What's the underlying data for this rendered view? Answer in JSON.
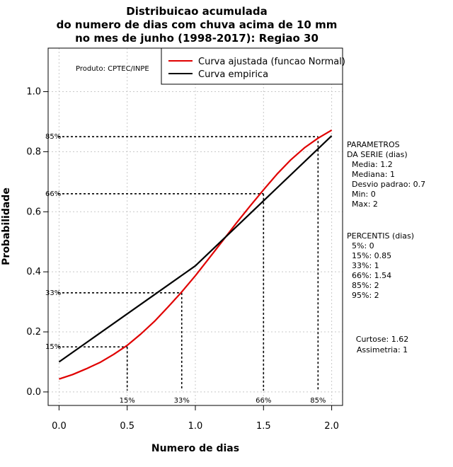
{
  "chart_data": {
    "type": "line",
    "title_lines": [
      "Distribuicao acumulada",
      "do numero de dias com chuva acima de 10 mm",
      "no mes de junho (1998-2017): Regiao 30"
    ],
    "xlabel": "Numero de dias",
    "ylabel": "Probabilidade",
    "xlim": [
      -0.08,
      2.08
    ],
    "ylim": [
      -0.045,
      1.145
    ],
    "x_ticks": [
      0.0,
      0.5,
      1.0,
      1.5,
      2.0
    ],
    "x_tick_labels": [
      "0.0",
      "0.5",
      "1.0",
      "1.5",
      "2.0"
    ],
    "y_ticks": [
      0.0,
      0.2,
      0.4,
      0.6,
      0.8,
      1.0
    ],
    "y_tick_labels": [
      "0.0",
      "0.2",
      "0.4",
      "0.6",
      "0.8",
      "1.0"
    ],
    "grid": true,
    "credit": "Produto: CPTEC/INPE",
    "legend": [
      {
        "label": "Curva ajustada (funcao Normal)",
        "color": "#e00000"
      },
      {
        "label": "Curva empirica",
        "color": "#000000"
      }
    ],
    "series": [
      {
        "name": "Curva ajustada (funcao Normal)",
        "color": "#e00000",
        "x": [
          0.0,
          0.1,
          0.2,
          0.3,
          0.4,
          0.5,
          0.6,
          0.7,
          0.8,
          0.9,
          1.0,
          1.1,
          1.2,
          1.3,
          1.4,
          1.5,
          1.6,
          1.7,
          1.8,
          1.9,
          2.0
        ],
        "y": [
          0.043,
          0.058,
          0.077,
          0.098,
          0.125,
          0.155,
          0.193,
          0.235,
          0.283,
          0.333,
          0.387,
          0.445,
          0.503,
          0.562,
          0.618,
          0.673,
          0.726,
          0.773,
          0.813,
          0.845,
          0.872
        ]
      },
      {
        "name": "Curva empirica",
        "color": "#000000",
        "x": [
          0.0,
          1.0,
          2.0
        ],
        "y": [
          0.1,
          0.42,
          0.853
        ]
      }
    ],
    "percentile_markers": [
      {
        "label": "15%",
        "x": 0.5,
        "y": 0.15
      },
      {
        "label": "33%",
        "x": 0.9,
        "y": 0.33
      },
      {
        "label": "66%",
        "x": 1.5,
        "y": 0.66
      },
      {
        "label": "85%",
        "x": 1.9,
        "y": 0.85
      }
    ],
    "side_panel": {
      "params_lines": [
        "PARAMETROS",
        "DA SERIE (dias)",
        "  Media: 1.2",
        "  Mediana: 1",
        "  Desvio padrao: 0.7",
        "  Min: 0",
        "  Max: 2"
      ],
      "percentis_lines": [
        "PERCENTIS (dias)",
        "  5%: 0",
        "  15%: 0.85",
        "  33%: 1",
        "  66%: 1.54",
        "  85%: 2",
        "  95%: 2"
      ],
      "shape_lines": [
        "Curtose: 1.62",
        "Assimetria: 1"
      ]
    }
  }
}
